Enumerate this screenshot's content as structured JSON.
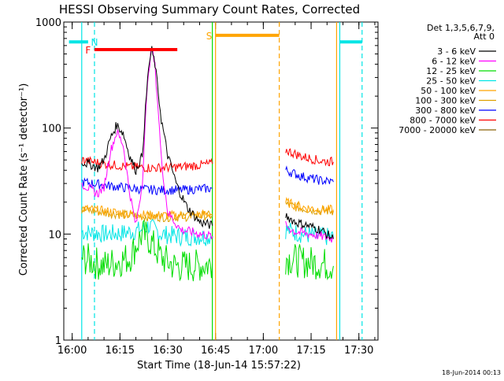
{
  "chart_data": {
    "type": "line",
    "title": "HESSI Observing Summary Count Rates, Corrected",
    "xlabel": "Start Time (18-Jun-14 15:57:22)",
    "ylabel": "Corrected Count Rate (s⁻¹ detector⁻¹)",
    "y_scale": "log",
    "ylim": [
      1,
      1000
    ],
    "xlim": [
      "15:57:22",
      "17:36:00"
    ],
    "x_ticks": [
      "16:00",
      "16:15",
      "16:30",
      "16:45",
      "17:00",
      "17:15",
      "17:30"
    ],
    "y_ticks": [
      "1",
      "10",
      "100",
      "1000"
    ],
    "footer_date": "18-Jun-2014 00:13",
    "legend": {
      "title_line1": "Det 1,3,5,6,7,9,",
      "title_line2": "Att 0",
      "placement": "right"
    },
    "series": [
      {
        "name": "3 - 6 keV",
        "color": "#000000",
        "segments": [
          [
            [
              "16:03",
              48
            ],
            [
              "16:06",
              45
            ],
            [
              "16:08",
              42
            ],
            [
              "16:10",
              50
            ],
            [
              "16:12",
              80
            ],
            [
              "16:14",
              107
            ],
            [
              "16:16",
              90
            ],
            [
              "16:18",
              55
            ],
            [
              "16:20",
              40
            ],
            [
              "16:22",
              55
            ],
            [
              "16:23",
              150
            ],
            [
              "16:24",
              380
            ],
            [
              "16:25",
              540
            ],
            [
              "16:26",
              400
            ],
            [
              "16:27",
              220
            ],
            [
              "16:28",
              120
            ],
            [
              "16:30",
              55
            ],
            [
              "16:33",
              28
            ],
            [
              "16:36",
              18
            ],
            [
              "16:40",
              13
            ],
            [
              "16:44",
              12
            ]
          ],
          [
            [
              "17:07",
              15
            ],
            [
              "17:10",
              13
            ],
            [
              "17:14",
              12
            ],
            [
              "17:18",
              11
            ],
            [
              "17:22",
              9
            ]
          ]
        ]
      },
      {
        "name": "6 - 12 keV",
        "color": "#ff00ff",
        "segments": [
          [
            [
              "16:03",
              30
            ],
            [
              "16:06",
              26
            ],
            [
              "16:08",
              24
            ],
            [
              "16:10",
              28
            ],
            [
              "16:12",
              60
            ],
            [
              "16:14",
              92
            ],
            [
              "16:16",
              70
            ],
            [
              "16:18",
              25
            ],
            [
              "16:20",
              12
            ],
            [
              "16:22",
              30
            ],
            [
              "16:23",
              120
            ],
            [
              "16:24",
              360
            ],
            [
              "16:25",
              560
            ],
            [
              "16:26",
              380
            ],
            [
              "16:27",
              150
            ],
            [
              "16:28",
              50
            ],
            [
              "16:30",
              16
            ],
            [
              "16:34",
              11
            ],
            [
              "16:44",
              9.5
            ]
          ],
          [
            [
              "17:07",
              12
            ],
            [
              "17:10",
              10.5
            ],
            [
              "17:15",
              10
            ],
            [
              "17:22",
              9
            ]
          ]
        ]
      },
      {
        "name": "12 - 25 keV",
        "color": "#00dd00",
        "segments": [
          [
            [
              "16:03",
              6
            ],
            [
              "16:10",
              5
            ],
            [
              "16:14",
              5.5
            ],
            [
              "16:18",
              6
            ],
            [
              "16:22",
              10
            ],
            [
              "16:24",
              9
            ],
            [
              "16:28",
              6
            ],
            [
              "16:32",
              5
            ],
            [
              "16:38",
              5
            ],
            [
              "16:44",
              5.2
            ]
          ],
          [
            [
              "17:07",
              6
            ],
            [
              "17:12",
              5.5
            ],
            [
              "17:18",
              5.3
            ],
            [
              "17:22",
              5
            ]
          ]
        ]
      },
      {
        "name": "25 - 50 keV",
        "color": "#00e5e5",
        "segments": [
          [
            [
              "16:03",
              10.5
            ],
            [
              "16:10",
              10
            ],
            [
              "16:16",
              10.2
            ],
            [
              "16:22",
              11
            ],
            [
              "16:24",
              12
            ],
            [
              "16:28",
              10
            ],
            [
              "16:34",
              9.5
            ],
            [
              "16:44",
              9.5
            ]
          ],
          [
            [
              "17:07",
              11
            ],
            [
              "17:12",
              10
            ],
            [
              "17:18",
              9.5
            ],
            [
              "17:22",
              9.3
            ]
          ]
        ]
      },
      {
        "name": "50 - 100 keV",
        "color": "#ffa500",
        "segments": [
          [
            [
              "16:03",
              17.5
            ],
            [
              "16:10",
              16.5
            ],
            [
              "16:18",
              15.5
            ],
            [
              "16:26",
              15
            ],
            [
              "16:34",
              15
            ],
            [
              "16:44",
              15.5
            ]
          ],
          [
            [
              "17:07",
              20
            ],
            [
              "17:12",
              18
            ],
            [
              "17:18",
              17
            ],
            [
              "17:22",
              17
            ]
          ]
        ]
      },
      {
        "name": "100 - 300 keV",
        "color": "#dda000",
        "segments": [
          [
            [
              "16:03",
              17
            ],
            [
              "16:10",
              16
            ],
            [
              "16:18",
              15
            ],
            [
              "16:26",
              14.5
            ],
            [
              "16:34",
              14.5
            ],
            [
              "16:44",
              15
            ]
          ],
          [
            [
              "17:07",
              19
            ],
            [
              "17:12",
              17.5
            ],
            [
              "17:18",
              16.5
            ],
            [
              "17:22",
              16.5
            ]
          ]
        ]
      },
      {
        "name": "300 - 800 keV",
        "color": "#0000ff",
        "segments": [
          [
            [
              "16:03",
              31
            ],
            [
              "16:10",
              29
            ],
            [
              "16:18",
              27
            ],
            [
              "16:26",
              26
            ],
            [
              "16:34",
              26
            ],
            [
              "16:44",
              27
            ]
          ],
          [
            [
              "17:07",
              40
            ],
            [
              "17:12",
              35
            ],
            [
              "17:18",
              32
            ],
            [
              "17:22",
              31
            ]
          ]
        ]
      },
      {
        "name": "800 - 7000 keV",
        "color": "#ff0000",
        "segments": [
          [
            [
              "16:03",
              50
            ],
            [
              "16:10",
              46
            ],
            [
              "16:18",
              43
            ],
            [
              "16:26",
              42
            ],
            [
              "16:34",
              43
            ],
            [
              "16:44",
              46
            ]
          ],
          [
            [
              "17:07",
              62
            ],
            [
              "17:12",
              54
            ],
            [
              "17:18",
              49
            ],
            [
              "17:22",
              48
            ]
          ]
        ]
      },
      {
        "name": "7000 - 20000 keV",
        "color": "#8b6508",
        "segments": []
      }
    ],
    "annotations": [
      {
        "label": "N",
        "color": "#00e5e5",
        "kind": "bar",
        "x_start": "15:59",
        "x_end": "16:05",
        "y": 650,
        "label_x": "16:07"
      },
      {
        "label": "F",
        "color": "#ff0000",
        "kind": "bar",
        "x_start": "16:07",
        "x_end": "16:33",
        "y": 550,
        "label_x": "16:05"
      },
      {
        "label": "S",
        "color": "#ffa500",
        "kind": "bar",
        "x_start": "16:45",
        "x_end": "17:05",
        "y": 750,
        "label_x": "16:43"
      },
      {
        "label": "",
        "color": "#00e5e5",
        "kind": "bar",
        "x_start": "17:24",
        "x_end": "17:31",
        "y": 650,
        "label_x": ""
      }
    ],
    "vertical_lines": [
      {
        "x": "16:03",
        "color": "#00e5e5",
        "style": "solid"
      },
      {
        "x": "16:07",
        "color": "#00e5e5",
        "style": "dashed"
      },
      {
        "x": "16:44",
        "color": "#00dd00",
        "style": "solid"
      },
      {
        "x": "16:45",
        "color": "#ffa500",
        "style": "solid"
      },
      {
        "x": "17:05",
        "color": "#ffa500",
        "style": "dashed"
      },
      {
        "x": "17:23",
        "color": "#ffa500",
        "style": "solid"
      },
      {
        "x": "17:24",
        "color": "#00e5e5",
        "style": "solid"
      },
      {
        "x": "17:31",
        "color": "#00e5e5",
        "style": "dashed"
      }
    ]
  }
}
